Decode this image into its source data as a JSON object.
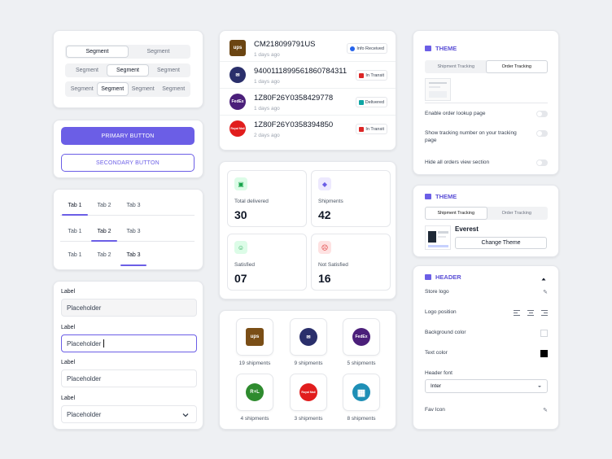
{
  "segments": {
    "row1": [
      {
        "label": "Segment",
        "active": true
      },
      {
        "label": "Segment",
        "active": false
      }
    ],
    "row2": [
      {
        "label": "Segment",
        "active": false
      },
      {
        "label": "Segment",
        "active": true
      },
      {
        "label": "Segment",
        "active": false
      }
    ],
    "row3": [
      {
        "label": "Segment",
        "active": false
      },
      {
        "label": "Segment",
        "active": true
      },
      {
        "label": "Segment",
        "active": false
      },
      {
        "label": "Segment",
        "active": false
      }
    ]
  },
  "buttons": {
    "primary": "PRIMARY BUTTON",
    "secondary": "SECONDARY BUTTON"
  },
  "tabs": {
    "labels": [
      "Tab 1",
      "Tab 2",
      "Tab 3"
    ]
  },
  "form": {
    "label": "Label",
    "placeholder": "Placeholder"
  },
  "shipments": [
    {
      "number": "CM218099791US",
      "time": "1 days ago",
      "status": "Info Received",
      "status_color": "#2563eb",
      "carrier": "ups-icon"
    },
    {
      "number": "9400111899561860784311",
      "time": "1 days ago",
      "status": "In Transit",
      "status_color": "#dc2626",
      "carrier": "usps-icon"
    },
    {
      "number": "1Z80F26Y0358429778",
      "time": "1 days ago",
      "status": "Delivered",
      "status_color": "#0ea5a4",
      "carrier": "fedex-icon"
    },
    {
      "number": "1Z80F26Y0358394850",
      "time": "2 days ago",
      "status": "In Transit",
      "status_color": "#dc2626",
      "carrier": "royalmail-icon"
    }
  ],
  "stats": [
    {
      "label": "Total delivered",
      "value": "30",
      "icon": "box-icon",
      "color": "#16a34a",
      "bg": "#dcfce7"
    },
    {
      "label": "Shipments",
      "value": "42",
      "icon": "basket-icon",
      "color": "#6b5ee6",
      "bg": "#ede9fe"
    },
    {
      "label": "Satisfied",
      "value": "07",
      "icon": "smile-icon",
      "color": "#16a34a",
      "bg": "#dcfce7"
    },
    {
      "label": "Not Satisfied",
      "value": "16",
      "icon": "sad-icon",
      "color": "#dc2626",
      "bg": "#fee2e2"
    }
  ],
  "carriers": [
    {
      "name": "UPS",
      "count": "19 shipments",
      "bg": "#7a4e16",
      "text": "ups"
    },
    {
      "name": "USPS",
      "count": "9 shipments",
      "bg": "#2a2f6b",
      "text": "✉"
    },
    {
      "name": "FedEx",
      "count": "5 shipments",
      "bg": "#4b1f7a",
      "text": "FedEx"
    },
    {
      "name": "R+L",
      "count": "4 shipments",
      "bg": "#2e8b2e",
      "text": "R+L"
    },
    {
      "name": "Royal Mail",
      "count": "3 shipments",
      "bg": "#e11d1d",
      "text": "Royal Mail"
    },
    {
      "name": "Grid",
      "count": "8 shipments",
      "bg": "#1e8fb6",
      "text": "▦"
    }
  ],
  "theme1": {
    "title": "THEME",
    "tabs": [
      "Shipment Tracking",
      "Order Tracking"
    ],
    "toggles": [
      "Enable order lookup page",
      "Show tracking number on your tracking page",
      "Hide all orders view section"
    ]
  },
  "theme2": {
    "title": "THEME",
    "tabs": [
      "Shipment Tracking",
      "Order Tracking"
    ],
    "theme_name": "Everest",
    "change_button": "Change Theme"
  },
  "header": {
    "title": "HEADER",
    "store_logo": "Store logo",
    "logo_position": "Logo position",
    "background_color": "Background color",
    "text_color": "Text color",
    "header_font": "Header font",
    "font_value": "Inter",
    "fav_icon": "Fav Icon"
  }
}
